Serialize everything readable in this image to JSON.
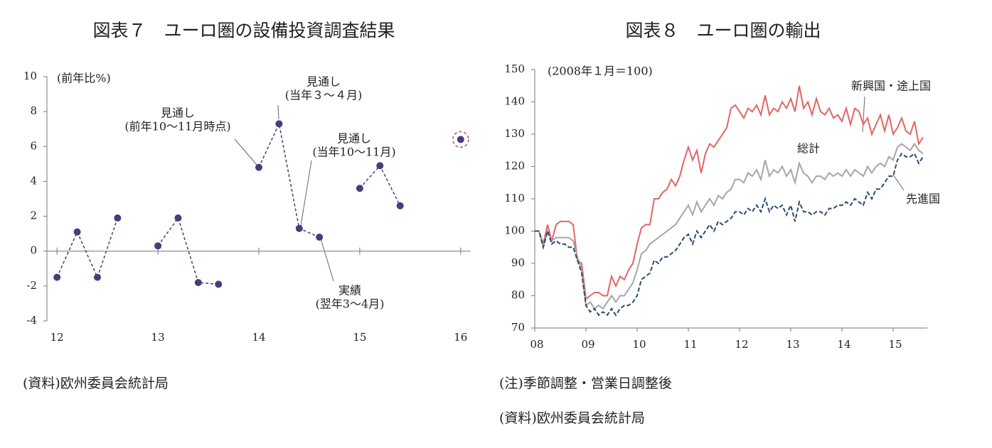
{
  "chart_data": [
    {
      "type": "line",
      "title": "図表７　ユーロ圏の設備投資調査結果",
      "y_label": "(前年比%)",
      "x": [
        12,
        12.2,
        12.4,
        12.6,
        12.8,
        13,
        13.2,
        13.4,
        13.6,
        13.8,
        14,
        14.2,
        14.4,
        14.6,
        14.8,
        15,
        15.2,
        15.4,
        15.6,
        15.8,
        16
      ],
      "values": [
        -1.5,
        1.1,
        -1.5,
        1.9,
        null,
        0.3,
        1.9,
        -1.8,
        -1.9,
        null,
        4.8,
        7.3,
        1.3,
        0.8,
        null,
        3.6,
        4.9,
        2.6,
        null,
        null,
        6.4
      ],
      "color": "#4b3b7a",
      "line_style": "dashed",
      "xlim": [
        11.9,
        16.1
      ],
      "xticks": [
        12,
        13,
        14,
        15,
        16
      ],
      "ylim": [
        -4,
        10
      ],
      "yticks": [
        -4,
        -2,
        0,
        2,
        4,
        6,
        8,
        10
      ],
      "annotations": [
        {
          "lines": [
            "見通し",
            "(前年10～11月時点)"
          ]
        },
        {
          "lines": [
            "見通し",
            "(当年３～４月)"
          ]
        },
        {
          "lines": [
            "見通し",
            "(当年10～11月)"
          ]
        },
        {
          "lines": [
            "実績",
            "(翌年3～4月)"
          ]
        }
      ],
      "source": "(資料)欧州委員会統計局"
    },
    {
      "type": "line",
      "title": "図表８　ユーロ圏の輸出",
      "y_label": "(2008年１月＝100)",
      "categories": [
        "08",
        null,
        null,
        null,
        null,
        null,
        null,
        null,
        null,
        null,
        null,
        null,
        "09",
        null,
        null,
        null,
        null,
        null,
        null,
        null,
        null,
        null,
        null,
        null,
        "10",
        null,
        null,
        null,
        null,
        null,
        null,
        null,
        null,
        null,
        null,
        null,
        "11",
        null,
        null,
        null,
        null,
        null,
        null,
        null,
        null,
        null,
        null,
        null,
        "12",
        null,
        null,
        null,
        null,
        null,
        null,
        null,
        null,
        null,
        null,
        null,
        "13",
        null,
        null,
        null,
        null,
        null,
        null,
        null,
        null,
        null,
        null,
        null,
        "14",
        null,
        null,
        null,
        null,
        null,
        null,
        null,
        null,
        null,
        null,
        null,
        "15",
        null,
        null,
        null,
        null,
        null,
        null,
        null
      ],
      "series": [
        {
          "name": "新興国・途上国",
          "color": "#e06666",
          "line_style": "solid",
          "values": [
            100,
            100,
            96,
            102,
            97,
            102,
            103,
            103,
            103,
            102,
            91,
            90,
            79,
            80,
            81,
            81,
            80,
            80,
            86,
            83,
            86,
            85,
            88,
            90,
            96,
            101,
            102,
            102,
            110,
            110,
            112,
            113,
            116,
            114,
            117,
            122,
            126,
            122,
            125,
            118,
            124,
            127,
            126,
            128,
            130,
            132,
            138,
            139,
            137,
            135,
            138,
            137,
            139,
            136,
            142,
            136,
            138,
            137,
            140,
            138,
            141,
            137,
            145,
            138,
            140,
            136,
            141,
            137,
            136,
            138,
            135,
            136,
            134,
            138,
            133,
            138,
            137,
            133,
            135,
            130,
            133,
            136,
            131,
            136,
            130,
            132,
            135,
            131,
            130,
            134,
            127,
            129
          ]
        },
        {
          "name": "総計",
          "color": "#a6a6a6",
          "line_style": "solid",
          "values": [
            100,
            100,
            95,
            100,
            97,
            98,
            98,
            98,
            98,
            97,
            92,
            88,
            77,
            78,
            76,
            77,
            76,
            78,
            80,
            78,
            80,
            80,
            82,
            84,
            88,
            93,
            94,
            96,
            97,
            98,
            99,
            100,
            101,
            102,
            104,
            106,
            108,
            105,
            109,
            106,
            108,
            110,
            108,
            111,
            110,
            112,
            113,
            116,
            116,
            115,
            118,
            117,
            119,
            116,
            122,
            117,
            119,
            118,
            120,
            117,
            119,
            115,
            121,
            118,
            117,
            115,
            117,
            117,
            116,
            118,
            117,
            118,
            117,
            119,
            117,
            119,
            118,
            117,
            120,
            118,
            120,
            121,
            120,
            123,
            122,
            126,
            127,
            126,
            125,
            127,
            125,
            124
          ]
        },
        {
          "name": "先進国",
          "color": "#2e4a6e",
          "line_style": "dashed",
          "values": [
            100,
            100,
            95,
            100,
            96,
            97,
            96,
            96,
            95,
            95,
            91,
            87,
            77,
            75,
            76,
            74,
            75,
            74,
            76,
            74,
            76,
            77,
            77,
            78,
            80,
            85,
            86,
            87,
            91,
            90,
            92,
            92,
            93,
            94,
            96,
            98,
            99,
            96,
            100,
            98,
            100,
            102,
            100,
            103,
            102,
            103,
            104,
            106,
            106,
            105,
            107,
            106,
            108,
            106,
            110,
            106,
            108,
            107,
            108,
            105,
            108,
            103,
            109,
            106,
            106,
            105,
            106,
            106,
            105,
            107,
            107,
            108,
            108,
            109,
            108,
            110,
            109,
            108,
            112,
            110,
            113,
            113,
            115,
            117,
            117,
            122,
            124,
            123,
            123,
            124,
            121,
            123
          ]
        }
      ],
      "ylim": [
        70,
        150
      ],
      "yticks": [
        70,
        80,
        90,
        100,
        110,
        120,
        130,
        140,
        150
      ],
      "notes": [
        "(注)季節調整・営業日調整後",
        "(資料)欧州委員会統計局"
      ]
    }
  ]
}
